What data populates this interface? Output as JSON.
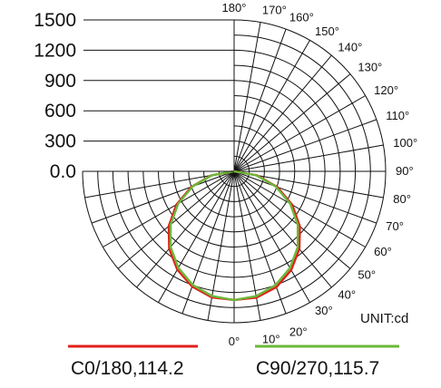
{
  "chart_data": {
    "type": "polar",
    "unit": "UNIT:cd",
    "radial_ticks": [
      "1500",
      "1200",
      "900",
      "600",
      "300",
      "0.0"
    ],
    "radial_tick_values": [
      1500,
      1200,
      900,
      600,
      300,
      0
    ],
    "rmax": 1500,
    "angle_labels": [
      "0°",
      "10°",
      "20°",
      "30°",
      "40°",
      "50°",
      "60°",
      "70°",
      "80°",
      "90°",
      "100°",
      "110°",
      "120°",
      "130°",
      "140°",
      "150°",
      "160°",
      "170°",
      "180°"
    ],
    "angle_values": [
      0,
      10,
      20,
      30,
      40,
      50,
      60,
      70,
      80,
      90,
      100,
      110,
      120,
      130,
      140,
      150,
      160,
      170,
      180
    ],
    "series": [
      {
        "name": "C0/180,114.2",
        "color": "#e0201a",
        "angles": [
          -90,
          -80,
          -70,
          -60,
          -50,
          -40,
          -30,
          -20,
          -10,
          0,
          10,
          20,
          30,
          40,
          50,
          60,
          70,
          80,
          90
        ],
        "values": [
          0,
          229,
          450,
          660,
          845,
          1000,
          1125,
          1215,
          1268,
          1275,
          1270,
          1222,
          1130,
          1005,
          850,
          665,
          455,
          232,
          0
        ]
      },
      {
        "name": "C90/270,115.7",
        "color": "#6cb83a",
        "angles": [
          -90,
          -80,
          -70,
          -60,
          -50,
          -40,
          -30,
          -20,
          -10,
          0,
          10,
          20,
          30,
          40,
          50,
          60,
          70,
          80,
          90
        ],
        "values": [
          0,
          222,
          436,
          638,
          820,
          978,
          1104,
          1198,
          1255,
          1275,
          1256,
          1199,
          1106,
          980,
          823,
          640,
          437,
          222,
          0
        ]
      }
    ]
  }
}
